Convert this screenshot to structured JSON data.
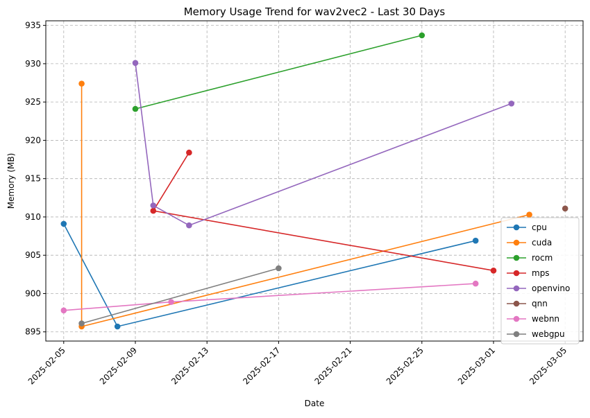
{
  "chart_data": {
    "type": "line",
    "title": "Memory Usage Trend for wav2vec2 - Last 30 Days",
    "xlabel": "Date",
    "ylabel": "Memory (MB)",
    "x_type": "date",
    "xlim": [
      "2025-02-04",
      "2025-03-06"
    ],
    "ylim": [
      893.8,
      935.6
    ],
    "x_ticks": [
      "2025-02-05",
      "2025-02-09",
      "2025-02-13",
      "2025-02-17",
      "2025-02-21",
      "2025-02-25",
      "2025-03-01",
      "2025-03-05"
    ],
    "y_ticks": [
      895,
      900,
      905,
      910,
      915,
      920,
      925,
      930,
      935
    ],
    "x_tick_rotation": 45,
    "grid": true,
    "grid_style": "dashed",
    "legend_position": "right",
    "marker": "circle",
    "series": [
      {
        "name": "cpu",
        "color": "#1f77b4",
        "points": [
          {
            "x": "2025-02-05",
            "y": 909.1
          },
          {
            "x": "2025-02-08",
            "y": 895.7
          },
          {
            "x": "2025-02-28",
            "y": 906.9
          }
        ]
      },
      {
        "name": "cuda",
        "color": "#ff7f0e",
        "points": [
          {
            "x": "2025-02-06",
            "y": 927.4
          },
          {
            "x": "2025-02-06",
            "y": 895.7
          },
          {
            "x": "2025-03-03",
            "y": 910.3
          }
        ]
      },
      {
        "name": "rocm",
        "color": "#2ca02c",
        "points": [
          {
            "x": "2025-02-09",
            "y": 924.1
          },
          {
            "x": "2025-02-25",
            "y": 933.7
          }
        ]
      },
      {
        "name": "mps",
        "color": "#d62728",
        "points": [
          {
            "x": "2025-02-12",
            "y": 918.4
          },
          {
            "x": "2025-02-10",
            "y": 910.8
          },
          {
            "x": "2025-03-01",
            "y": 903.0
          }
        ]
      },
      {
        "name": "openvino",
        "color": "#9467bd",
        "points": [
          {
            "x": "2025-02-09",
            "y": 930.1
          },
          {
            "x": "2025-02-10",
            "y": 911.5
          },
          {
            "x": "2025-02-12",
            "y": 908.9
          },
          {
            "x": "2025-03-02",
            "y": 924.8
          }
        ]
      },
      {
        "name": "qnn",
        "color": "#8c564b",
        "points": [
          {
            "x": "2025-03-05",
            "y": 911.1
          }
        ]
      },
      {
        "name": "webnn",
        "color": "#e377c2",
        "points": [
          {
            "x": "2025-02-05",
            "y": 897.8
          },
          {
            "x": "2025-02-11",
            "y": 898.9
          },
          {
            "x": "2025-02-28",
            "y": 901.3
          }
        ]
      },
      {
        "name": "webgpu",
        "color": "#7f7f7f",
        "points": [
          {
            "x": "2025-02-06",
            "y": 896.1
          },
          {
            "x": "2025-02-17",
            "y": 903.3
          }
        ]
      }
    ]
  }
}
